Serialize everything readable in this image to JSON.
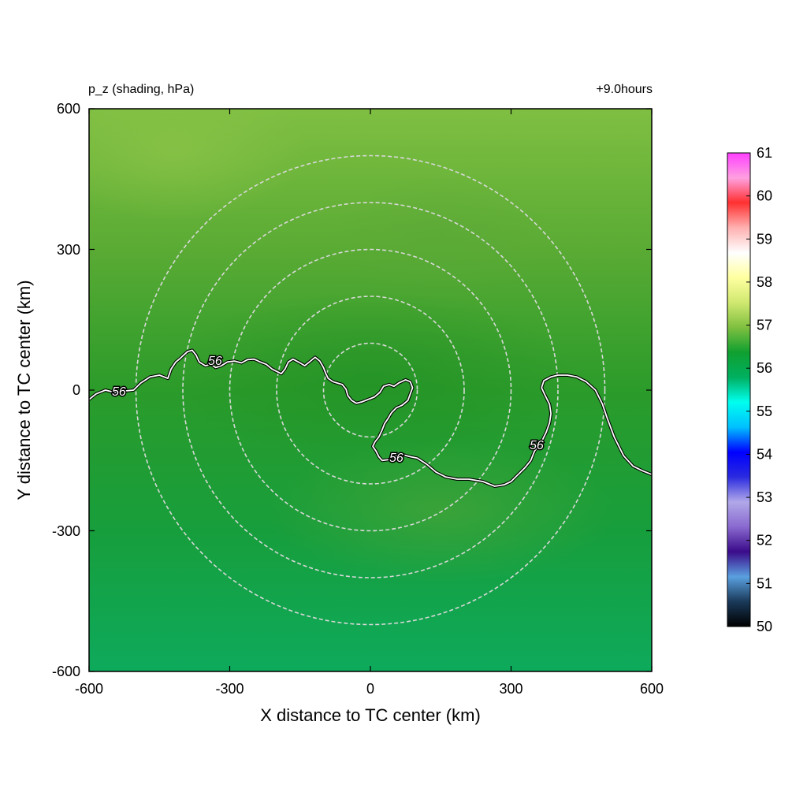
{
  "chart_data": {
    "type": "heatmap",
    "title_left": "p_z (shading, hPa)",
    "title_right": "+9.0hours",
    "xlabel": "X distance to TC center (km)",
    "ylabel": "Y distance to TC center (km)",
    "xlim": [
      -600,
      600
    ],
    "ylim": [
      -600,
      600
    ],
    "xticks": [
      "-600",
      "-300",
      "0",
      "300",
      "600"
    ],
    "yticks": [
      "600",
      "300",
      "0",
      "-300",
      "-600"
    ],
    "radii_km": [
      100,
      200,
      300,
      400,
      500
    ],
    "contour": {
      "level": 56,
      "labels": [
        "56",
        "56",
        "56",
        "56"
      ],
      "points_km": [
        [
          -600,
          -20
        ],
        [
          -585,
          -8
        ],
        [
          -565,
          0
        ],
        [
          -545,
          -5
        ],
        [
          -525,
          -2
        ],
        [
          -505,
          0
        ],
        [
          -490,
          15
        ],
        [
          -470,
          28
        ],
        [
          -450,
          32
        ],
        [
          -432,
          25
        ],
        [
          -425,
          45
        ],
        [
          -415,
          60
        ],
        [
          -405,
          68
        ],
        [
          -398,
          75
        ],
        [
          -390,
          82
        ],
        [
          -380,
          85
        ],
        [
          -372,
          75
        ],
        [
          -365,
          60
        ],
        [
          -352,
          52
        ],
        [
          -340,
          55
        ],
        [
          -330,
          48
        ],
        [
          -318,
          52
        ],
        [
          -305,
          60
        ],
        [
          -290,
          62
        ],
        [
          -275,
          58
        ],
        [
          -262,
          65
        ],
        [
          -248,
          66
        ],
        [
          -235,
          60
        ],
        [
          -222,
          55
        ],
        [
          -210,
          45
        ],
        [
          -200,
          40
        ],
        [
          -190,
          35
        ],
        [
          -182,
          45
        ],
        [
          -175,
          60
        ],
        [
          -165,
          66
        ],
        [
          -150,
          58
        ],
        [
          -140,
          52
        ],
        [
          -130,
          60
        ],
        [
          -118,
          70
        ],
        [
          -108,
          62
        ],
        [
          -100,
          48
        ],
        [
          -95,
          35
        ],
        [
          -90,
          25
        ],
        [
          -80,
          18
        ],
        [
          -70,
          15
        ],
        [
          -60,
          12
        ],
        [
          -52,
          2
        ],
        [
          -48,
          -12
        ],
        [
          -40,
          -22
        ],
        [
          -30,
          -28
        ],
        [
          -18,
          -25
        ],
        [
          -5,
          -20
        ],
        [
          8,
          -15
        ],
        [
          20,
          -5
        ],
        [
          28,
          8
        ],
        [
          40,
          12
        ],
        [
          50,
          8
        ],
        [
          60,
          15
        ],
        [
          75,
          22
        ],
        [
          85,
          18
        ],
        [
          90,
          5
        ],
        [
          85,
          -8
        ],
        [
          80,
          -22
        ],
        [
          68,
          -32
        ],
        [
          55,
          -38
        ],
        [
          45,
          -48
        ],
        [
          38,
          -60
        ],
        [
          30,
          -72
        ],
        [
          25,
          -85
        ],
        [
          18,
          -100
        ],
        [
          10,
          -110
        ],
        [
          5,
          -120
        ],
        [
          12,
          -130
        ],
        [
          18,
          -142
        ],
        [
          25,
          -150
        ],
        [
          40,
          -148
        ],
        [
          55,
          -140
        ],
        [
          70,
          -138
        ],
        [
          85,
          -142
        ],
        [
          100,
          -145
        ],
        [
          120,
          -158
        ],
        [
          140,
          -175
        ],
        [
          160,
          -185
        ],
        [
          185,
          -190
        ],
        [
          210,
          -190
        ],
        [
          240,
          -195
        ],
        [
          265,
          -205
        ],
        [
          285,
          -202
        ],
        [
          300,
          -195
        ],
        [
          315,
          -180
        ],
        [
          330,
          -165
        ],
        [
          342,
          -150
        ],
        [
          350,
          -130
        ],
        [
          365,
          -110
        ],
        [
          375,
          -90
        ],
        [
          382,
          -70
        ],
        [
          385,
          -50
        ],
        [
          382,
          -30
        ],
        [
          372,
          -10
        ],
        [
          365,
          5
        ],
        [
          370,
          20
        ],
        [
          385,
          28
        ],
        [
          400,
          32
        ],
        [
          420,
          32
        ],
        [
          440,
          28
        ],
        [
          460,
          18
        ],
        [
          480,
          0
        ],
        [
          495,
          -30
        ],
        [
          505,
          -60
        ],
        [
          520,
          -100
        ],
        [
          540,
          -140
        ],
        [
          560,
          -162
        ],
        [
          580,
          -172
        ],
        [
          600,
          -180
        ]
      ]
    },
    "colorbar": {
      "min": 50,
      "max": 61,
      "tick_labels": [
        "61",
        "60",
        "59",
        "58",
        "57",
        "56",
        "55",
        "54",
        "53",
        "52",
        "51",
        "50"
      ],
      "colors": [
        "#000000",
        "#1a3a5a",
        "#5aa0e0",
        "#3a0a8a",
        "#8a6ad0",
        "#b0a8e8",
        "#2a2ae0",
        "#0000ff",
        "#00c0ff",
        "#00ffee",
        "#00b060",
        "#10a030",
        "#80c040",
        "#d0e870",
        "#ffffa0",
        "#ffffff",
        "#ffb0b0",
        "#ff3030",
        "#ffa0e0",
        "#ff40ff"
      ]
    }
  }
}
